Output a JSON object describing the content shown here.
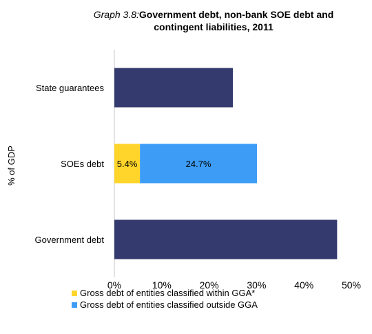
{
  "chart_data": {
    "type": "bar",
    "orientation": "horizontal",
    "stacked": true,
    "title_prefix": "Graph 3.8:",
    "title": "Government debt, non-bank SOE debt and contingent liabilities, 2011",
    "xlabel": "",
    "ylabel": "% of GDP",
    "xlim": [
      0,
      50
    ],
    "xticks": [
      "0%",
      "10%",
      "20%",
      "30%",
      "40%",
      "50%"
    ],
    "grid": false,
    "legend_position": "bottom",
    "categories": [
      "State guarantees",
      "SOEs debt",
      "Government debt"
    ],
    "series": [
      {
        "name": "",
        "color": "#353a6e",
        "values": [
          25.0,
          null,
          47.0
        ],
        "labels": [
          "",
          "",
          ""
        ]
      },
      {
        "name": "Gross debt of entities classified within GGA*",
        "color": "#ffd52b",
        "values": [
          null,
          5.4,
          null
        ],
        "labels": [
          "",
          "5.4%",
          ""
        ]
      },
      {
        "name": "Gross debt of entities classified outside GGA",
        "color": "#3d9cf5",
        "values": [
          null,
          24.7,
          null
        ],
        "labels": [
          "",
          "24.7%",
          ""
        ]
      }
    ]
  }
}
